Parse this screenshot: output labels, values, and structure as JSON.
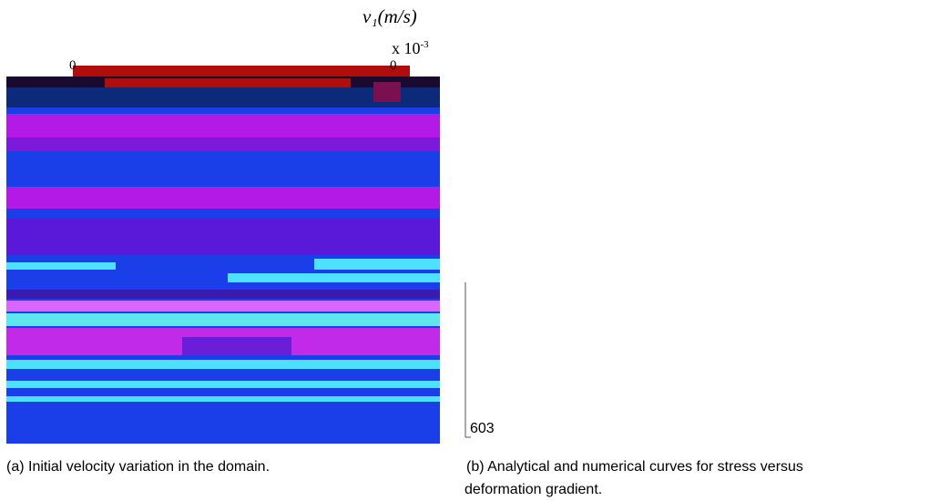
{
  "figure_a": {
    "colorbar_title": "v₁(m/s)",
    "scale_base": "x 10",
    "scale_exponent": "-3",
    "tick_left": 0,
    "tick_right": 0,
    "caption": "(a) Initial velocity variation in the domain."
  },
  "figure_b": {
    "axis_tick": 603,
    "caption_line1": "(b) Analytical and numerical curves for stress versus",
    "caption_line2": "deformation gradient."
  }
}
